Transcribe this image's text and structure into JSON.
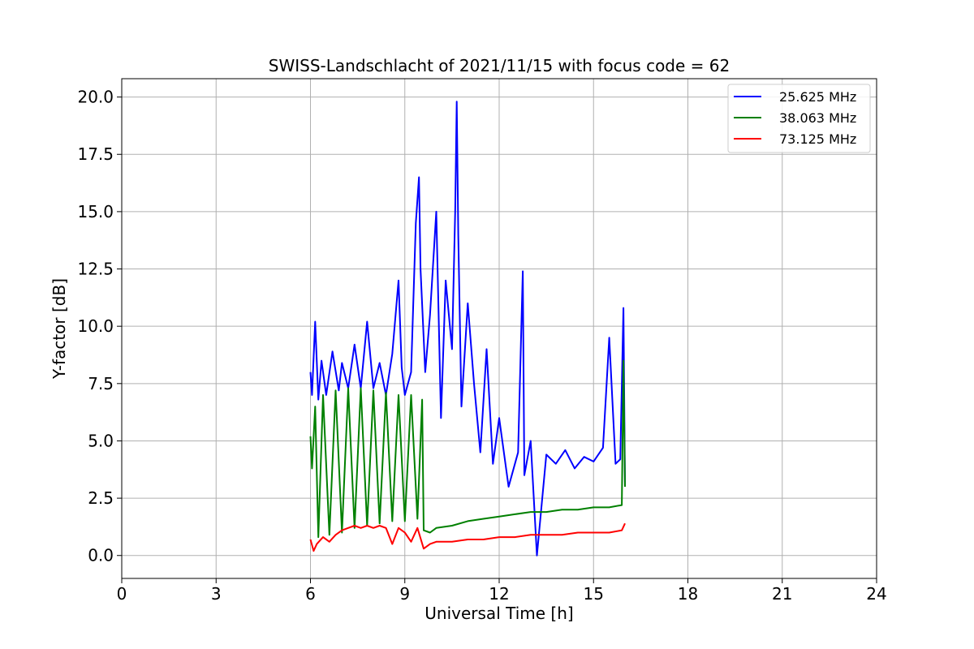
{
  "chart_data": {
    "type": "line",
    "title": "SWISS-Landschlacht of 2021/11/15 with focus code = 62",
    "xlabel": "Universal Time [h]",
    "ylabel": "Y-factor [dB]",
    "xlim": [
      0,
      24
    ],
    "ylim": [
      -1.0,
      20.8
    ],
    "xticks": [
      "0",
      "3",
      "6",
      "9",
      "12",
      "15",
      "18",
      "21",
      "24"
    ],
    "yticks": [
      "0.0",
      "2.5",
      "5.0",
      "7.5",
      "10.0",
      "12.5",
      "15.0",
      "17.5",
      "20.0"
    ],
    "grid": true,
    "legend_position": "top-right",
    "series": [
      {
        "name": "25.625 MHz",
        "color": "#0000ff",
        "x": [
          6.0,
          6.05,
          6.15,
          6.25,
          6.35,
          6.5,
          6.7,
          6.9,
          7.0,
          7.2,
          7.4,
          7.6,
          7.8,
          8.0,
          8.2,
          8.4,
          8.6,
          8.8,
          8.9,
          9.0,
          9.2,
          9.35,
          9.45,
          9.5,
          9.65,
          9.8,
          10.0,
          10.15,
          10.3,
          10.5,
          10.6,
          10.65,
          10.7,
          10.8,
          11.0,
          11.2,
          11.4,
          11.6,
          11.8,
          12.0,
          12.3,
          12.6,
          12.75,
          12.8,
          13.0,
          13.2,
          13.5,
          13.8,
          14.1,
          14.4,
          14.7,
          15.0,
          15.3,
          15.5,
          15.7,
          15.85,
          15.95,
          16.0
        ],
        "y": [
          8.0,
          7.0,
          10.2,
          6.8,
          8.5,
          7.0,
          8.9,
          7.2,
          8.4,
          7.3,
          9.2,
          7.3,
          10.2,
          7.3,
          8.4,
          7.0,
          8.8,
          12.0,
          8.2,
          7.0,
          8.0,
          14.5,
          16.5,
          12.5,
          8.0,
          10.5,
          15.0,
          6.0,
          12.0,
          9.0,
          15.0,
          19.8,
          14.0,
          6.5,
          11.0,
          7.5,
          4.5,
          9.0,
          4.0,
          6.0,
          3.0,
          4.5,
          12.4,
          3.5,
          5.0,
          0.0,
          4.4,
          4.0,
          4.6,
          3.8,
          4.3,
          4.1,
          4.7,
          9.5,
          4.0,
          4.2,
          10.8,
          3.0
        ]
      },
      {
        "name": "38.063 MHz",
        "color": "#008000",
        "x": [
          6.0,
          6.05,
          6.15,
          6.25,
          6.4,
          6.6,
          6.8,
          7.0,
          7.2,
          7.4,
          7.6,
          7.8,
          8.0,
          8.2,
          8.4,
          8.6,
          8.8,
          9.0,
          9.2,
          9.4,
          9.55,
          9.6,
          9.8,
          10.0,
          10.5,
          11.0,
          11.5,
          12.0,
          12.5,
          13.0,
          13.5,
          14.0,
          14.5,
          15.0,
          15.5,
          15.9,
          15.95,
          16.0
        ],
        "y": [
          5.2,
          3.8,
          6.5,
          0.8,
          7.0,
          0.9,
          7.2,
          1.0,
          7.3,
          1.2,
          7.3,
          1.3,
          7.2,
          1.4,
          7.1,
          1.5,
          7.0,
          1.5,
          7.0,
          1.6,
          6.8,
          1.1,
          1.0,
          1.2,
          1.3,
          1.5,
          1.6,
          1.7,
          1.8,
          1.9,
          1.9,
          2.0,
          2.0,
          2.1,
          2.1,
          2.2,
          8.5,
          3.0
        ]
      },
      {
        "name": "73.125 MHz",
        "color": "#ff0000",
        "x": [
          6.0,
          6.1,
          6.2,
          6.4,
          6.6,
          6.8,
          7.0,
          7.2,
          7.4,
          7.6,
          7.8,
          8.0,
          8.2,
          8.4,
          8.6,
          8.8,
          9.0,
          9.2,
          9.4,
          9.6,
          9.8,
          10.0,
          10.5,
          11.0,
          11.5,
          12.0,
          12.5,
          13.0,
          13.5,
          14.0,
          14.5,
          15.0,
          15.5,
          15.9,
          16.0
        ],
        "y": [
          0.7,
          0.2,
          0.5,
          0.8,
          0.6,
          0.9,
          1.1,
          1.2,
          1.3,
          1.2,
          1.3,
          1.2,
          1.3,
          1.2,
          0.5,
          1.2,
          1.0,
          0.6,
          1.2,
          0.3,
          0.5,
          0.6,
          0.6,
          0.7,
          0.7,
          0.8,
          0.8,
          0.9,
          0.9,
          0.9,
          1.0,
          1.0,
          1.0,
          1.1,
          1.4
        ]
      }
    ]
  }
}
